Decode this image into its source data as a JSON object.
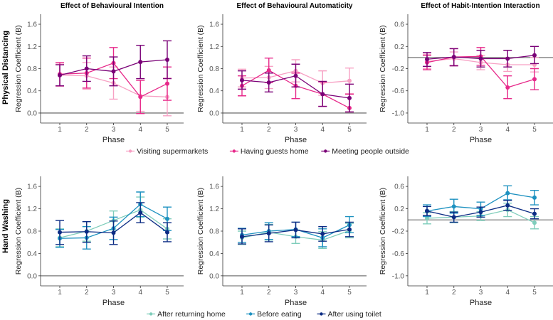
{
  "row_labels": [
    "Physical Distancing",
    "Hand Washing"
  ],
  "legends": [
    {
      "entries": [
        "Visiting supermarkets",
        "Having guests home",
        "Meeting people outside"
      ],
      "colors": [
        "#f7a1c4",
        "#e7298a",
        "#7a0177"
      ]
    },
    {
      "entries": [
        "After returning home",
        "Before eating",
        "After using toilet"
      ],
      "colors": [
        "#7fcdbb",
        "#1d91c0",
        "#0c2c84"
      ]
    }
  ],
  "chart_data": [
    {
      "type": "line",
      "row": 0,
      "col": 0,
      "title": "Effect of Behavioural Intention",
      "xlabel": "Phase",
      "ylabel": "Regression Coefficient (B)",
      "x": [
        1,
        2,
        3,
        4,
        5
      ],
      "yticks": [
        "0.0",
        "0.4",
        "0.8",
        "1.2",
        "1.6"
      ],
      "ylim": [
        -0.18,
        1.78
      ],
      "hline": 0,
      "grid": false,
      "series": [
        {
          "name": "Visiting supermarkets",
          "values": [
            0.68,
            0.67,
            0.54,
            0.31,
            0.29
          ],
          "lo": [
            0.48,
            0.43,
            0.25,
            0.03,
            -0.05
          ],
          "hi": [
            0.88,
            0.91,
            0.83,
            0.59,
            0.63
          ]
        },
        {
          "name": "Having guests home",
          "values": [
            0.7,
            0.72,
            0.9,
            0.29,
            0.53
          ],
          "lo": [
            0.49,
            0.45,
            0.62,
            -0.01,
            0.23
          ],
          "hi": [
            0.91,
            0.99,
            1.18,
            0.59,
            0.83
          ]
        },
        {
          "name": "Meeting people outside",
          "values": [
            0.68,
            0.8,
            0.75,
            0.92,
            0.96
          ],
          "lo": [
            0.49,
            0.57,
            0.49,
            0.62,
            0.62
          ],
          "hi": [
            0.87,
            1.03,
            1.01,
            1.22,
            1.3
          ]
        }
      ]
    },
    {
      "type": "line",
      "row": 0,
      "col": 1,
      "title": "Effect of Behavioural Automaticity",
      "xlabel": "Phase",
      "ylabel": "Regression Coefficient (B)",
      "x": [
        1,
        2,
        3,
        4,
        5
      ],
      "yticks": [
        "0.0",
        "0.4",
        "0.8",
        "1.2",
        "1.6"
      ],
      "ylim": [
        -0.18,
        1.78
      ],
      "hline": 0,
      "grid": false,
      "series": [
        {
          "name": "Visiting supermarkets",
          "values": [
            0.63,
            0.64,
            0.76,
            0.54,
            0.58
          ],
          "lo": [
            0.47,
            0.44,
            0.56,
            0.32,
            0.35
          ],
          "hi": [
            0.79,
            0.84,
            0.96,
            0.76,
            0.81
          ]
        },
        {
          "name": "Having guests home",
          "values": [
            0.49,
            0.77,
            0.49,
            0.34,
            0.09
          ],
          "lo": [
            0.31,
            0.55,
            0.26,
            0.12,
            0.02
          ],
          "hi": [
            0.67,
            0.99,
            0.72,
            0.56,
            0.34
          ]
        },
        {
          "name": "Meeting people outside",
          "values": [
            0.59,
            0.55,
            0.67,
            0.34,
            0.27
          ],
          "lo": [
            0.43,
            0.38,
            0.47,
            0.12,
            0.02
          ],
          "hi": [
            0.76,
            0.72,
            0.88,
            0.57,
            0.52
          ]
        }
      ]
    },
    {
      "type": "line",
      "row": 0,
      "col": 2,
      "title": "Effect of Habit-Intention Interaction",
      "xlabel": "Phase",
      "ylabel": "Regression Coefficient (B)",
      "x": [
        1,
        2,
        3,
        4,
        5
      ],
      "yticks": [
        "-1.0",
        "-0.6",
        "-0.2",
        "0.2",
        "0.6"
      ],
      "ylim": [
        -1.18,
        0.78
      ],
      "hline": 0,
      "grid": false,
      "series": [
        {
          "name": "Visiting supermarkets",
          "values": [
            -0.07,
            -0.02,
            -0.09,
            -0.13,
            -0.13
          ],
          "lo": [
            -0.2,
            -0.14,
            -0.22,
            -0.25,
            -0.26
          ],
          "hi": [
            0.06,
            0.1,
            0.04,
            -0.01,
            0.0
          ]
        },
        {
          "name": "Having guests home",
          "values": [
            -0.09,
            0.01,
            0.02,
            -0.54,
            -0.39
          ],
          "lo": [
            -0.22,
            -0.15,
            -0.14,
            -0.74,
            -0.58
          ],
          "hi": [
            0.04,
            0.16,
            0.18,
            -0.33,
            -0.2
          ]
        },
        {
          "name": "Meeting people outside",
          "values": [
            -0.03,
            0.01,
            -0.02,
            -0.02,
            0.04
          ],
          "lo": [
            -0.16,
            -0.15,
            -0.17,
            -0.17,
            -0.11
          ],
          "hi": [
            0.09,
            0.16,
            0.13,
            0.13,
            0.2
          ]
        }
      ]
    },
    {
      "type": "line",
      "row": 1,
      "col": 0,
      "title": "",
      "xlabel": "Phase",
      "ylabel": "Regression Coefficient (B)",
      "x": [
        1,
        2,
        3,
        4,
        5
      ],
      "yticks": [
        "0.0",
        "0.4",
        "0.8",
        "1.2",
        "1.6"
      ],
      "ylim": [
        -0.18,
        1.78
      ],
      "hline": 0,
      "grid": false,
      "series": [
        {
          "name": "After returning home",
          "values": [
            0.68,
            0.8,
            0.99,
            1.18,
            0.84
          ],
          "lo": [
            0.52,
            0.62,
            0.82,
            1.05,
            0.66
          ],
          "hi": [
            0.84,
            0.97,
            1.16,
            1.41,
            1.02
          ]
        },
        {
          "name": "Before eating",
          "values": [
            0.67,
            0.68,
            0.85,
            1.28,
            1.02
          ],
          "lo": [
            0.51,
            0.48,
            0.65,
            1.06,
            0.81
          ],
          "hi": [
            0.83,
            0.88,
            1.05,
            1.5,
            1.23
          ]
        },
        {
          "name": "After using toilet",
          "values": [
            0.78,
            0.79,
            0.77,
            1.13,
            0.78
          ],
          "lo": [
            0.56,
            0.6,
            0.56,
            0.95,
            0.61
          ],
          "hi": [
            0.99,
            0.97,
            0.98,
            1.31,
            0.95
          ]
        }
      ]
    },
    {
      "type": "line",
      "row": 1,
      "col": 1,
      "title": "",
      "xlabel": "Phase",
      "ylabel": "Regression Coefficient (B)",
      "x": [
        1,
        2,
        3,
        4,
        5
      ],
      "yticks": [
        "0.0",
        "0.4",
        "0.8",
        "1.2",
        "1.6"
      ],
      "ylim": [
        -0.18,
        1.78
      ],
      "hline": 0,
      "grid": false,
      "series": [
        {
          "name": "After returning home",
          "values": [
            0.68,
            0.78,
            0.7,
            0.64,
            0.81
          ],
          "lo": [
            0.56,
            0.64,
            0.58,
            0.49,
            0.68
          ],
          "hi": [
            0.8,
            0.92,
            0.82,
            0.79,
            0.94
          ]
        },
        {
          "name": "Before eating",
          "values": [
            0.73,
            0.8,
            0.83,
            0.68,
            0.91
          ],
          "lo": [
            0.6,
            0.65,
            0.7,
            0.52,
            0.77
          ],
          "hi": [
            0.85,
            0.95,
            0.96,
            0.84,
            1.06
          ]
        },
        {
          "name": "After using toilet",
          "values": [
            0.7,
            0.76,
            0.82,
            0.75,
            0.83
          ],
          "lo": [
            0.57,
            0.61,
            0.68,
            0.62,
            0.7
          ],
          "hi": [
            0.84,
            0.91,
            0.96,
            0.88,
            0.96
          ]
        }
      ]
    },
    {
      "type": "line",
      "row": 1,
      "col": 2,
      "title": "",
      "xlabel": "Phase",
      "ylabel": "Regression Coefficient (B)",
      "x": [
        1,
        2,
        3,
        4,
        5
      ],
      "yticks": [
        "-1.0",
        "-0.6",
        "-0.2",
        "0.2",
        "0.6"
      ],
      "ylim": [
        -1.18,
        0.78
      ],
      "hline": 0,
      "grid": false,
      "series": [
        {
          "name": "After returning home",
          "values": [
            0.03,
            0.05,
            0.07,
            0.18,
            -0.05
          ],
          "lo": [
            -0.07,
            -0.05,
            -0.01,
            0.06,
            -0.16
          ],
          "hi": [
            0.13,
            0.15,
            0.15,
            0.3,
            0.06
          ]
        },
        {
          "name": "Before eating",
          "values": [
            0.16,
            0.24,
            0.2,
            0.48,
            0.4
          ],
          "lo": [
            0.06,
            0.12,
            0.08,
            0.36,
            0.27
          ],
          "hi": [
            0.27,
            0.37,
            0.32,
            0.61,
            0.53
          ]
        },
        {
          "name": "After using toilet",
          "values": [
            0.16,
            0.05,
            0.14,
            0.26,
            0.11
          ],
          "lo": [
            0.08,
            -0.04,
            0.05,
            0.17,
            0.02
          ],
          "hi": [
            0.24,
            0.14,
            0.23,
            0.35,
            0.2
          ]
        }
      ]
    }
  ]
}
